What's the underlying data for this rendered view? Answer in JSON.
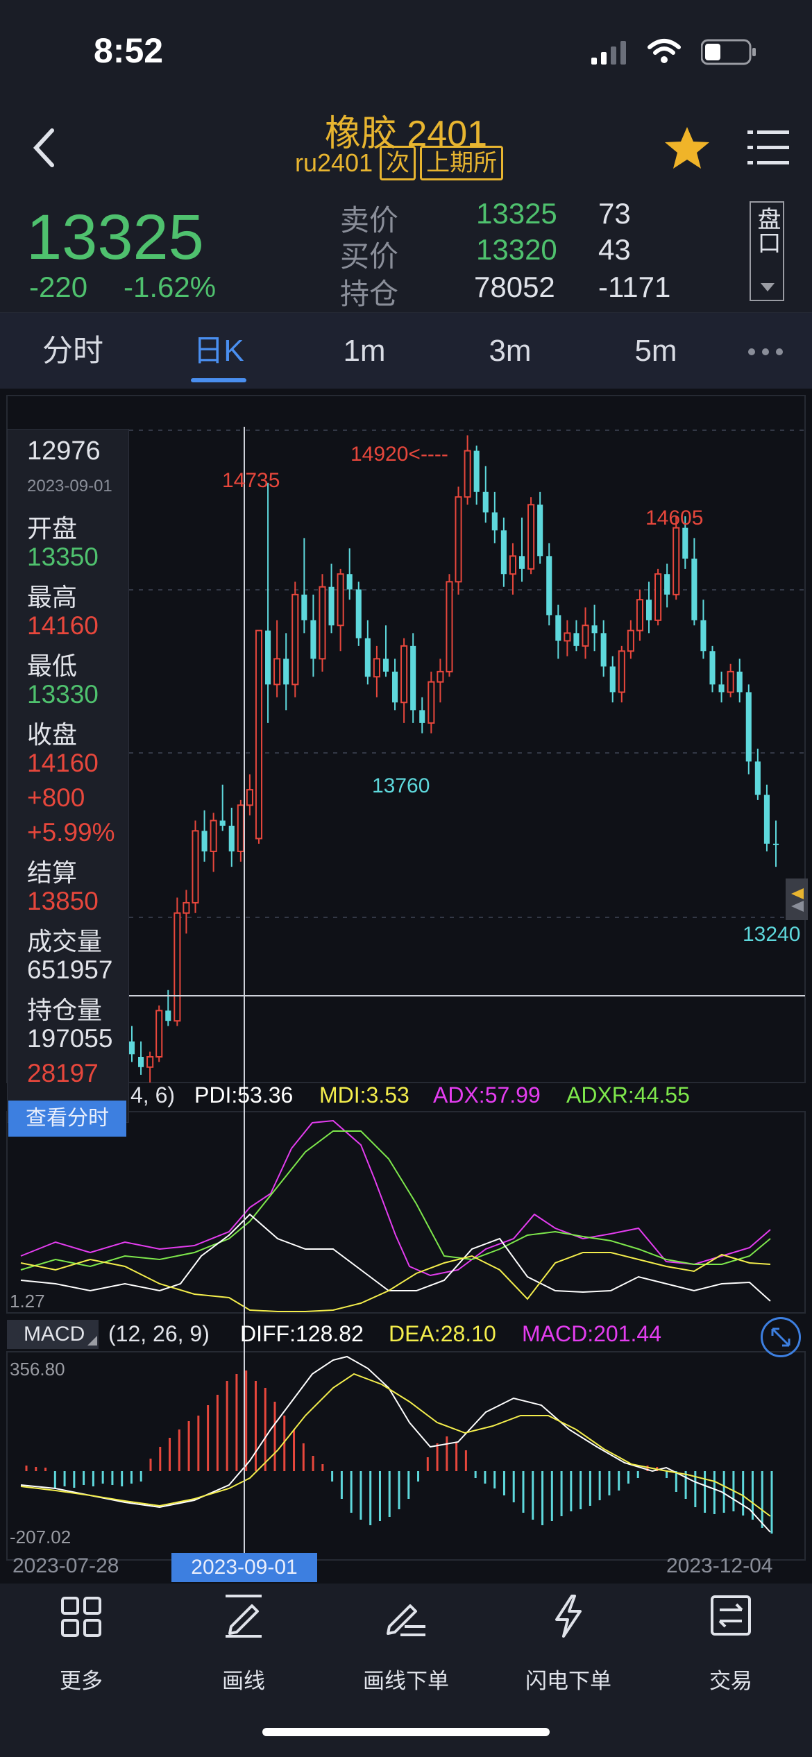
{
  "status_bar": {
    "time": "8:52"
  },
  "header": {
    "title": "橡胶 2401",
    "code": "ru2401",
    "badge_next": "次",
    "badge_exchange": "上期所"
  },
  "quote": {
    "last_price": "13325",
    "change": "-220",
    "change_pct": "-1.62%",
    "ask_label": "卖价",
    "ask_price": "13325",
    "ask_volume": "73",
    "bid_label": "买价",
    "bid_price": "13320",
    "bid_volume": "43",
    "oi_label": "持仓",
    "oi_value": "78052",
    "oi_change": "-1171",
    "panel_btn": "盘口"
  },
  "tabs": [
    "分时",
    "日K",
    "1m",
    "3m",
    "5m"
  ],
  "active_tab": 1,
  "chart_labels": {
    "high_14735": "14735",
    "high_14920": "14920<----",
    "high_14605": "14605",
    "low_13760": "13760",
    "last_13240": "13240"
  },
  "crosshair_info": {
    "price": "12976",
    "date": "2023-09-01",
    "open_label": "开盘",
    "open": "13350",
    "high_label": "最高",
    "high": "14160",
    "low_label": "最低",
    "low": "13330",
    "close_label": "收盘",
    "close": "14160",
    "chg": "+800",
    "chg_pct": "+5.99%",
    "settle_label": "结算",
    "settle": "13850",
    "volume_label": "成交量",
    "volume": "651957",
    "oi_label": "持仓量",
    "oi": "197055",
    "oi_chg": "28197",
    "view_btn": "查看分时"
  },
  "dmi": {
    "params": "4, 6)",
    "pdi": "PDI:53.36",
    "mdi": "MDI:3.53",
    "adx": "ADX:57.99",
    "adxr": "ADXR:44.55",
    "min_label": "1.27"
  },
  "macd": {
    "name": "MACD",
    "params": "(12, 26, 9)",
    "diff": "DIFF:128.82",
    "dea": "DEA:28.10",
    "macd": "MACD:201.44",
    "max_label": "356.80",
    "min_label": "-207.02"
  },
  "dates": {
    "start": "2023-07-28",
    "cursor": "2023-09-01",
    "end": "2023-12-04"
  },
  "bottom_nav": [
    "更多",
    "画线",
    "画线下单",
    "闪电下单",
    "交易"
  ],
  "colors": {
    "up": "#e7473c",
    "down": "#5ed8dc",
    "accent": "#e8b530",
    "active_tab": "#4a8ff0"
  },
  "chart_data": {
    "type": "candlestick",
    "x_range": [
      "2023-07-28",
      "2023-12-04"
    ],
    "annotations": {
      "high": 14920,
      "high_left": 14735,
      "high_right": 14605,
      "low": 13760,
      "last": 13240
    },
    "candles_ohlc": [
      [
        12560,
        12620,
        12480,
        12510
      ],
      [
        12500,
        12560,
        12430,
        12460
      ],
      [
        12460,
        12520,
        12400,
        12500
      ],
      [
        12500,
        12700,
        12480,
        12680
      ],
      [
        12680,
        12760,
        12620,
        12640
      ],
      [
        12640,
        13120,
        12620,
        13060
      ],
      [
        13060,
        13150,
        12980,
        13100
      ],
      [
        13100,
        13420,
        13060,
        13380
      ],
      [
        13380,
        13460,
        13260,
        13300
      ],
      [
        13300,
        13450,
        13220,
        13420
      ],
      [
        13420,
        13560,
        13380,
        13400
      ],
      [
        13400,
        13470,
        13240,
        13300
      ],
      [
        13300,
        13500,
        13260,
        13480
      ],
      [
        13480,
        13600,
        13440,
        13540
      ],
      [
        13350,
        14160,
        13330,
        14160
      ],
      [
        14160,
        14735,
        13800,
        13950
      ],
      [
        13950,
        14200,
        13900,
        14050
      ],
      [
        14050,
        14150,
        13850,
        13950
      ],
      [
        13950,
        14350,
        13900,
        14300
      ],
      [
        14300,
        14520,
        14150,
        14200
      ],
      [
        14200,
        14300,
        13980,
        14050
      ],
      [
        14050,
        14380,
        14000,
        14330
      ],
      [
        14330,
        14420,
        14150,
        14180
      ],
      [
        14180,
        14400,
        14080,
        14380
      ],
      [
        14380,
        14480,
        14280,
        14320
      ],
      [
        14320,
        14350,
        14100,
        14130
      ],
      [
        14130,
        14200,
        13950,
        13980
      ],
      [
        13980,
        14100,
        13900,
        14050
      ],
      [
        14050,
        14180,
        13980,
        14000
      ],
      [
        14000,
        14050,
        13850,
        13880
      ],
      [
        13880,
        14130,
        13800,
        14100
      ],
      [
        14100,
        14150,
        13800,
        13850
      ],
      [
        13850,
        13900,
        13760,
        13800
      ],
      [
        13800,
        14000,
        13760,
        13960
      ],
      [
        13960,
        14050,
        13880,
        14000
      ],
      [
        14000,
        14380,
        13980,
        14350
      ],
      [
        14350,
        14720,
        14300,
        14680
      ],
      [
        14680,
        14920,
        14650,
        14860
      ],
      [
        14860,
        14880,
        14650,
        14700
      ],
      [
        14700,
        14800,
        14580,
        14620
      ],
      [
        14620,
        14700,
        14500,
        14550
      ],
      [
        14550,
        14600,
        14330,
        14380
      ],
      [
        14380,
        14500,
        14300,
        14450
      ],
      [
        14450,
        14600,
        14350,
        14400
      ],
      [
        14400,
        14680,
        14380,
        14650
      ],
      [
        14650,
        14700,
        14420,
        14450
      ],
      [
        14450,
        14500,
        14180,
        14220
      ],
      [
        14220,
        14260,
        14050,
        14120
      ],
      [
        14120,
        14200,
        14060,
        14150
      ],
      [
        14150,
        14200,
        14080,
        14100
      ],
      [
        14100,
        14250,
        14050,
        14180
      ],
      [
        14180,
        14260,
        14080,
        14150
      ],
      [
        14150,
        14200,
        13980,
        14020
      ],
      [
        14020,
        14060,
        13880,
        13920
      ],
      [
        13920,
        14100,
        13880,
        14080
      ],
      [
        14080,
        14200,
        14050,
        14160
      ],
      [
        14160,
        14320,
        14120,
        14280
      ],
      [
        14280,
        14350,
        14150,
        14200
      ],
      [
        14200,
        14400,
        14180,
        14380
      ],
      [
        14380,
        14420,
        14250,
        14300
      ],
      [
        14300,
        14605,
        14280,
        14560
      ],
      [
        14560,
        14605,
        14400,
        14440
      ],
      [
        14440,
        14520,
        14180,
        14200
      ],
      [
        14200,
        14280,
        14050,
        14080
      ],
      [
        14080,
        14100,
        13920,
        13950
      ],
      [
        13950,
        14000,
        13880,
        13920
      ],
      [
        13920,
        14030,
        13900,
        14000
      ],
      [
        14000,
        14050,
        13880,
        13920
      ],
      [
        13920,
        13950,
        13600,
        13650
      ],
      [
        13650,
        13700,
        13500,
        13520
      ],
      [
        13520,
        13560,
        13300,
        13330
      ],
      [
        13330,
        13420,
        13240,
        13325
      ]
    ]
  }
}
